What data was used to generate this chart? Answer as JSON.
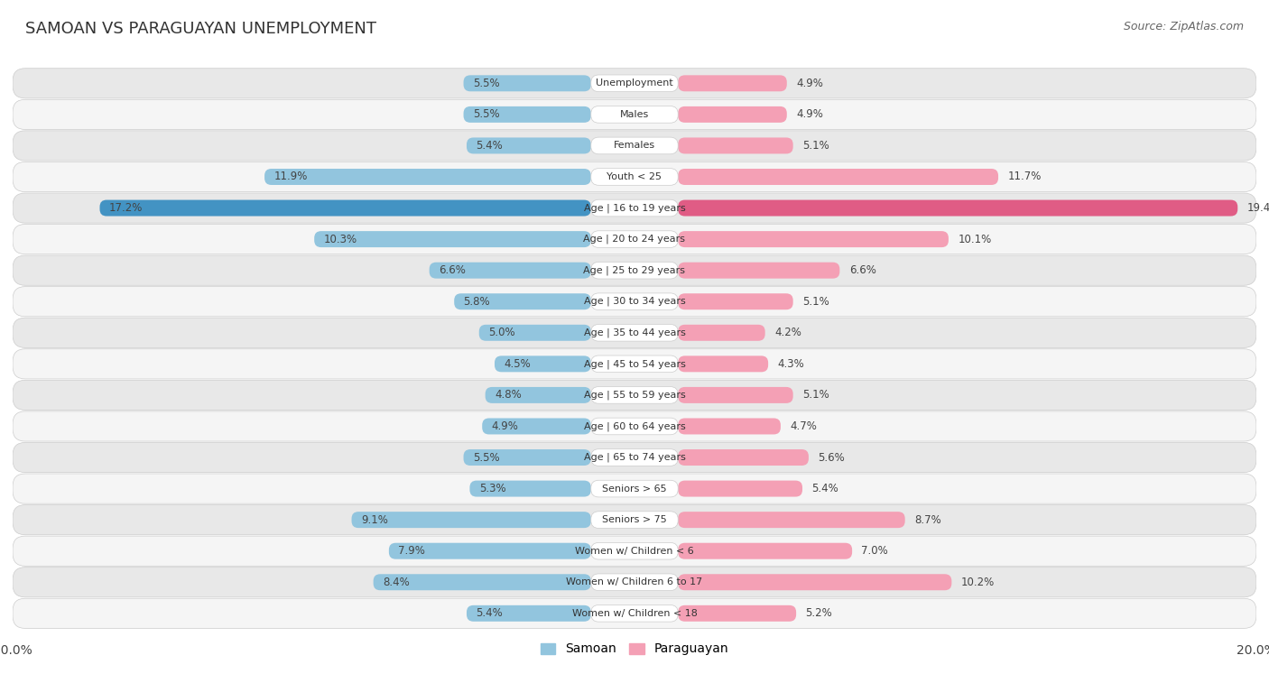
{
  "title": "Samoan vs Paraguayan Unemployment",
  "source": "Source: ZipAtlas.com",
  "categories": [
    "Unemployment",
    "Males",
    "Females",
    "Youth < 25",
    "Age | 16 to 19 years",
    "Age | 20 to 24 years",
    "Age | 25 to 29 years",
    "Age | 30 to 34 years",
    "Age | 35 to 44 years",
    "Age | 45 to 54 years",
    "Age | 55 to 59 years",
    "Age | 60 to 64 years",
    "Age | 65 to 74 years",
    "Seniors > 65",
    "Seniors > 75",
    "Women w/ Children < 6",
    "Women w/ Children 6 to 17",
    "Women w/ Children < 18"
  ],
  "samoan": [
    5.5,
    5.5,
    5.4,
    11.9,
    17.2,
    10.3,
    6.6,
    5.8,
    5.0,
    4.5,
    4.8,
    4.9,
    5.5,
    5.3,
    9.1,
    7.9,
    8.4,
    5.4
  ],
  "paraguayan": [
    4.9,
    4.9,
    5.1,
    11.7,
    19.4,
    10.1,
    6.6,
    5.1,
    4.2,
    4.3,
    5.1,
    4.7,
    5.6,
    5.4,
    8.7,
    7.0,
    10.2,
    5.2
  ],
  "samoan_color": "#92c5de",
  "paraguayan_color": "#f4a0b5",
  "highlight_samoan_color": "#4393c3",
  "highlight_paraguayan_color": "#e05c85",
  "row_bg_odd": "#e8e8e8",
  "row_bg_even": "#f5f5f5",
  "max_val": 20.0,
  "background_color": "#ffffff",
  "highlight_idx": 4,
  "label_fontsize": 8.5,
  "category_fontsize": 8.0,
  "title_fontsize": 13,
  "source_fontsize": 9
}
